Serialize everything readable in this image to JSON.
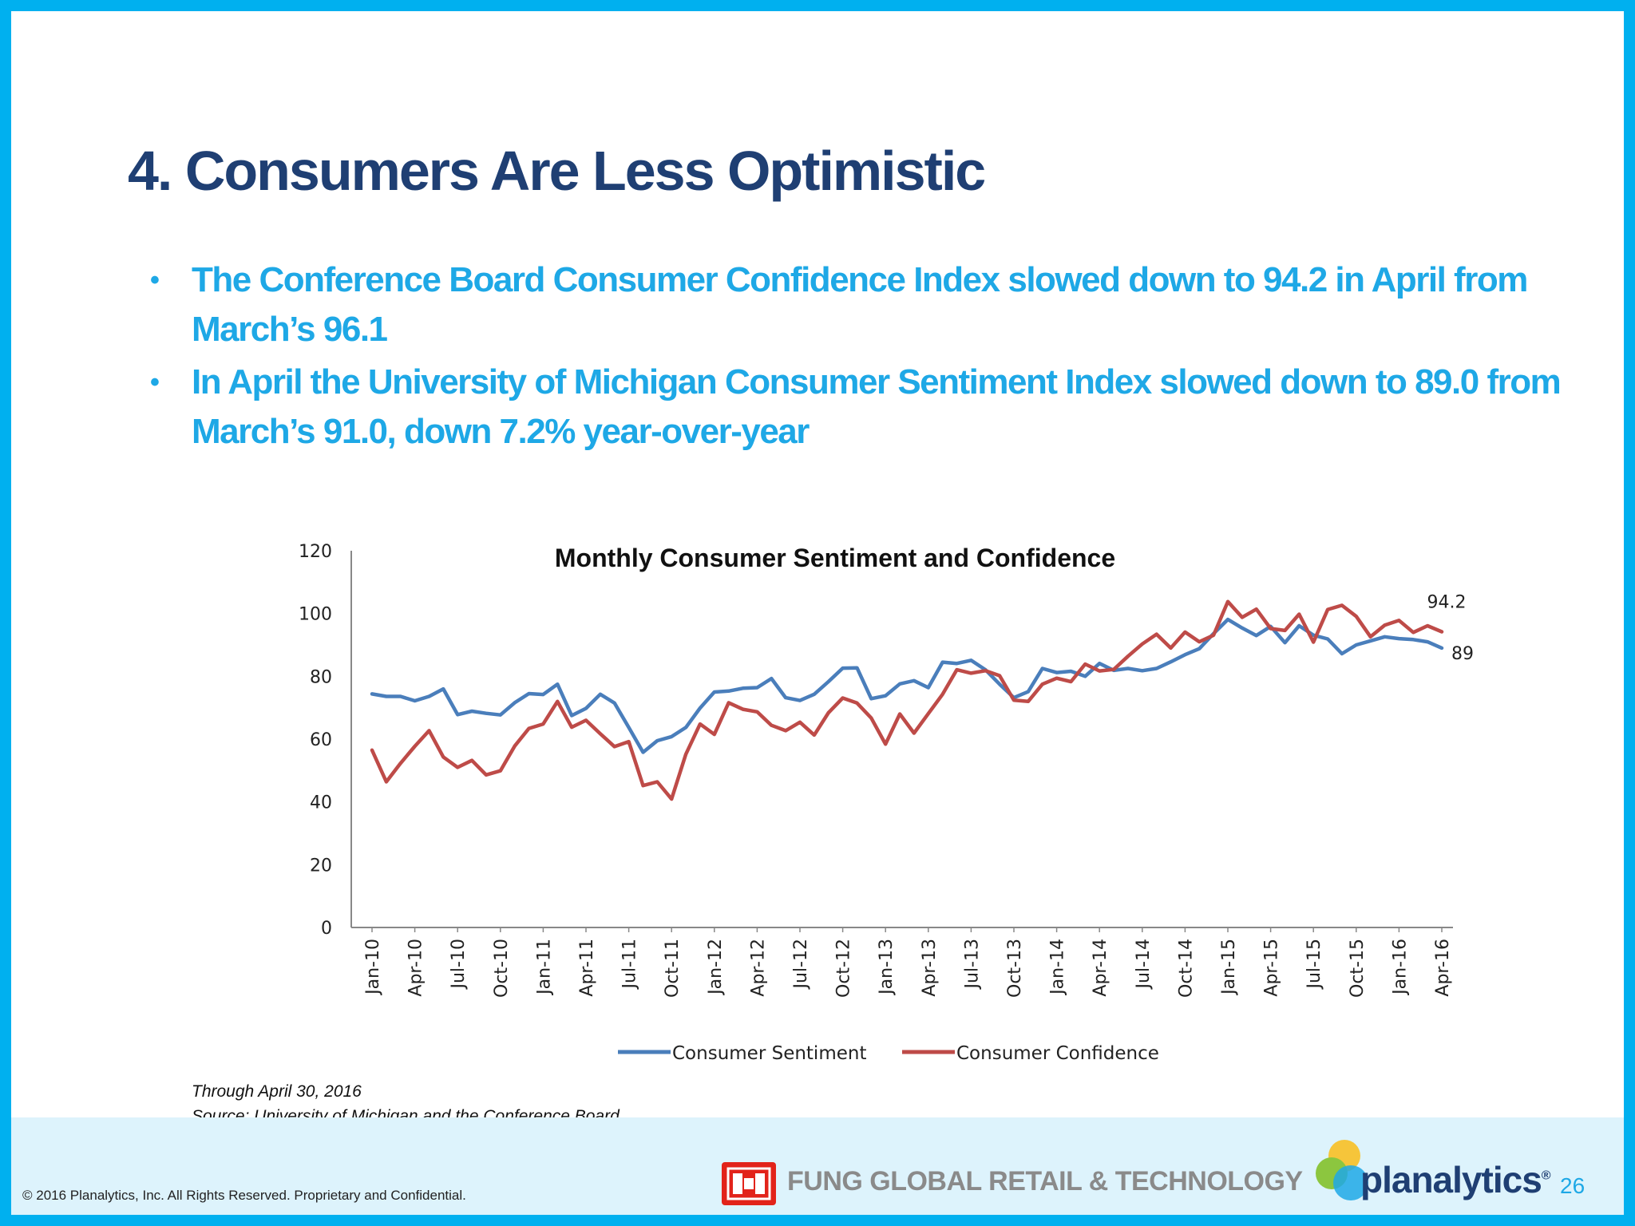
{
  "slide": {
    "title": "4. Consumers Are Less Optimistic",
    "bullets": [
      "The Conference Board Consumer Confidence Index slowed down to 94.2 in April from March’s 96.1",
      "In April the University of Michigan Consumer Sentiment Index slowed down to 89.0 from March’s 91.0, down 7.2% year-over-year"
    ],
    "bullet_symbol": "•",
    "note_through": "Through  April 30, 2016",
    "note_source": "Source: University of Michigan  and the Conference Board",
    "page_number": "26"
  },
  "footer": {
    "copyright": "© 2016 Planalytics, Inc. All Rights Reserved. Proprietary and Confidential.",
    "fung_text": "FUNG GLOBAL RETAIL & TECHNOLOGY",
    "planalytics_text": "planalytics",
    "planalytics_mark": "®"
  },
  "colors": {
    "frame": "#00b0ef",
    "title": "#1f3f73",
    "bullet": "#1ea8e6",
    "sentiment": "#4a7ebb",
    "confidence": "#be4b48"
  },
  "chart_data": {
    "type": "line",
    "title": "Monthly Consumer Sentiment and Confidence",
    "xlabel": "",
    "ylabel": "",
    "ylim": [
      0,
      120
    ],
    "yticks": [
      0,
      20,
      40,
      60,
      80,
      100,
      120
    ],
    "grid": false,
    "legend": "bottom",
    "x": [
      "Jan-10",
      "Feb-10",
      "Mar-10",
      "Apr-10",
      "May-10",
      "Jun-10",
      "Jul-10",
      "Aug-10",
      "Sep-10",
      "Oct-10",
      "Nov-10",
      "Dec-10",
      "Jan-11",
      "Feb-11",
      "Mar-11",
      "Apr-11",
      "May-11",
      "Jun-11",
      "Jul-11",
      "Aug-11",
      "Sep-11",
      "Oct-11",
      "Nov-11",
      "Dec-11",
      "Jan-12",
      "Feb-12",
      "Mar-12",
      "Apr-12",
      "May-12",
      "Jun-12",
      "Jul-12",
      "Aug-12",
      "Sep-12",
      "Oct-12",
      "Nov-12",
      "Dec-12",
      "Jan-13",
      "Feb-13",
      "Mar-13",
      "Apr-13",
      "May-13",
      "Jun-13",
      "Jul-13",
      "Aug-13",
      "Sep-13",
      "Oct-13",
      "Nov-13",
      "Dec-13",
      "Jan-14",
      "Feb-14",
      "Mar-14",
      "Apr-14",
      "May-14",
      "Jun-14",
      "Jul-14",
      "Aug-14",
      "Sep-14",
      "Oct-14",
      "Nov-14",
      "Dec-14",
      "Jan-15",
      "Feb-15",
      "Mar-15",
      "Apr-15",
      "May-15",
      "Jun-15",
      "Jul-15",
      "Aug-15",
      "Sep-15",
      "Oct-15",
      "Nov-15",
      "Dec-15",
      "Jan-16",
      "Feb-16",
      "Mar-16",
      "Apr-16"
    ],
    "tick_labels": [
      "Jan-10",
      "Apr-10",
      "Jul-10",
      "Oct-10",
      "Jan-11",
      "Apr-11",
      "Jul-11",
      "Oct-11",
      "Jan-12",
      "Apr-12",
      "Jul-12",
      "Oct-12",
      "Jan-13",
      "Apr-13",
      "Jul-13",
      "Oct-13",
      "Jan-14",
      "Apr-14",
      "Jul-14",
      "Oct-14",
      "Jan-15",
      "Apr-15",
      "Jul-15",
      "Oct-15",
      "Jan-16",
      "Apr-16"
    ],
    "series": [
      {
        "name": "Consumer Sentiment",
        "color": "#4a7ebb",
        "values": [
          74.4,
          73.6,
          73.6,
          72.2,
          73.6,
          76.0,
          67.8,
          68.9,
          68.2,
          67.7,
          71.6,
          74.5,
          74.2,
          77.5,
          67.5,
          69.8,
          74.3,
          71.5,
          63.7,
          55.8,
          59.5,
          60.8,
          63.7,
          69.9,
          75.0,
          75.3,
          76.2,
          76.4,
          79.3,
          73.2,
          72.3,
          74.3,
          78.3,
          82.6,
          82.7,
          72.9,
          73.8,
          77.6,
          78.6,
          76.4,
          84.5,
          84.1,
          85.1,
          82.1,
          77.5,
          73.2,
          75.1,
          82.5,
          81.2,
          81.6,
          80.0,
          84.1,
          81.9,
          82.5,
          81.8,
          82.5,
          84.6,
          86.9,
          88.8,
          93.6,
          98.1,
          95.4,
          93.0,
          95.9,
          90.7,
          96.1,
          93.1,
          91.9,
          87.2,
          90.0,
          91.3,
          92.6,
          92.0,
          91.7,
          91.0,
          89.0
        ]
      },
      {
        "name": "Consumer Confidence",
        "color": "#be4b48",
        "values": [
          56.5,
          46.4,
          52.3,
          57.7,
          62.7,
          54.3,
          51.0,
          53.2,
          48.6,
          49.9,
          57.8,
          63.4,
          64.8,
          72.0,
          63.8,
          66.0,
          61.7,
          57.6,
          59.2,
          45.2,
          46.4,
          40.9,
          55.2,
          64.8,
          61.5,
          71.6,
          69.5,
          68.7,
          64.4,
          62.7,
          65.4,
          61.3,
          68.4,
          73.1,
          71.5,
          66.7,
          58.4,
          68.0,
          61.9,
          68.1,
          74.3,
          82.1,
          81.0,
          81.8,
          80.2,
          72.4,
          72.0,
          77.5,
          79.4,
          78.3,
          83.9,
          81.7,
          82.2,
          86.4,
          90.3,
          93.4,
          89.0,
          94.1,
          91.0,
          93.1,
          103.8,
          98.8,
          101.4,
          95.2,
          94.6,
          99.8,
          90.9,
          101.3,
          102.6,
          99.1,
          92.6,
          96.3,
          97.8,
          94.0,
          96.1,
          94.2
        ]
      }
    ],
    "end_labels": {
      "Consumer Confidence": "94.2",
      "Consumer Sentiment": "89"
    }
  }
}
